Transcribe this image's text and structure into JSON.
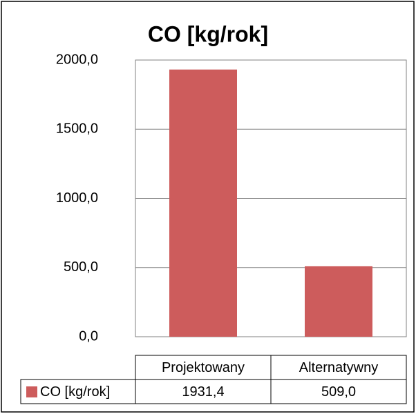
{
  "chart_data": {
    "type": "bar",
    "title": "CO [kg/rok]",
    "categories": [
      "Projektowany",
      "Alternatywny"
    ],
    "series": [
      {
        "name": "CO [kg/rok]",
        "color": "#cd5c5c",
        "values": [
          1931.4,
          509.0
        ],
        "value_labels": [
          "1931,4",
          "509,0"
        ]
      }
    ],
    "ylim": [
      0,
      2000
    ],
    "yticks": [
      {
        "value": 0,
        "label": "0,0"
      },
      {
        "value": 500,
        "label": "500,0"
      },
      {
        "value": 1000,
        "label": "1000,0"
      },
      {
        "value": 1500,
        "label": "1500,0"
      },
      {
        "value": 2000,
        "label": "2000,0"
      }
    ],
    "grid": true
  }
}
